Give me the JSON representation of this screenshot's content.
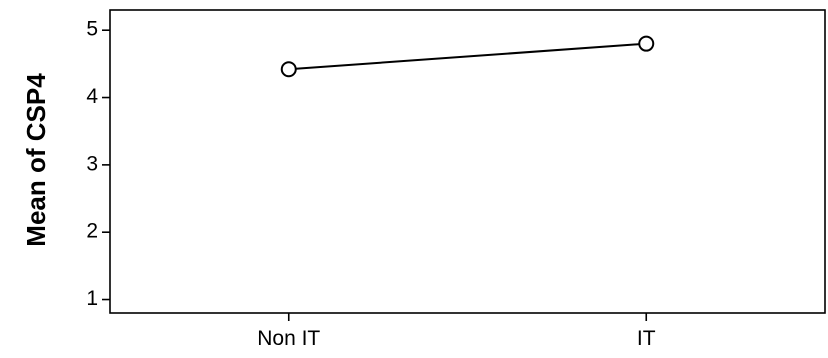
{
  "chart_data": {
    "type": "line",
    "title": "",
    "xlabel": "",
    "ylabel": "Mean of CSP4",
    "categories": [
      "Non IT",
      "IT"
    ],
    "series": [
      {
        "values": [
          4.42,
          4.8
        ],
        "marker": "open-circle",
        "color": "#000000"
      }
    ],
    "ylim": [
      0.8,
      5.3
    ],
    "yticks": [
      1,
      2,
      3,
      4,
      5
    ],
    "grid": false,
    "legend": "none"
  }
}
